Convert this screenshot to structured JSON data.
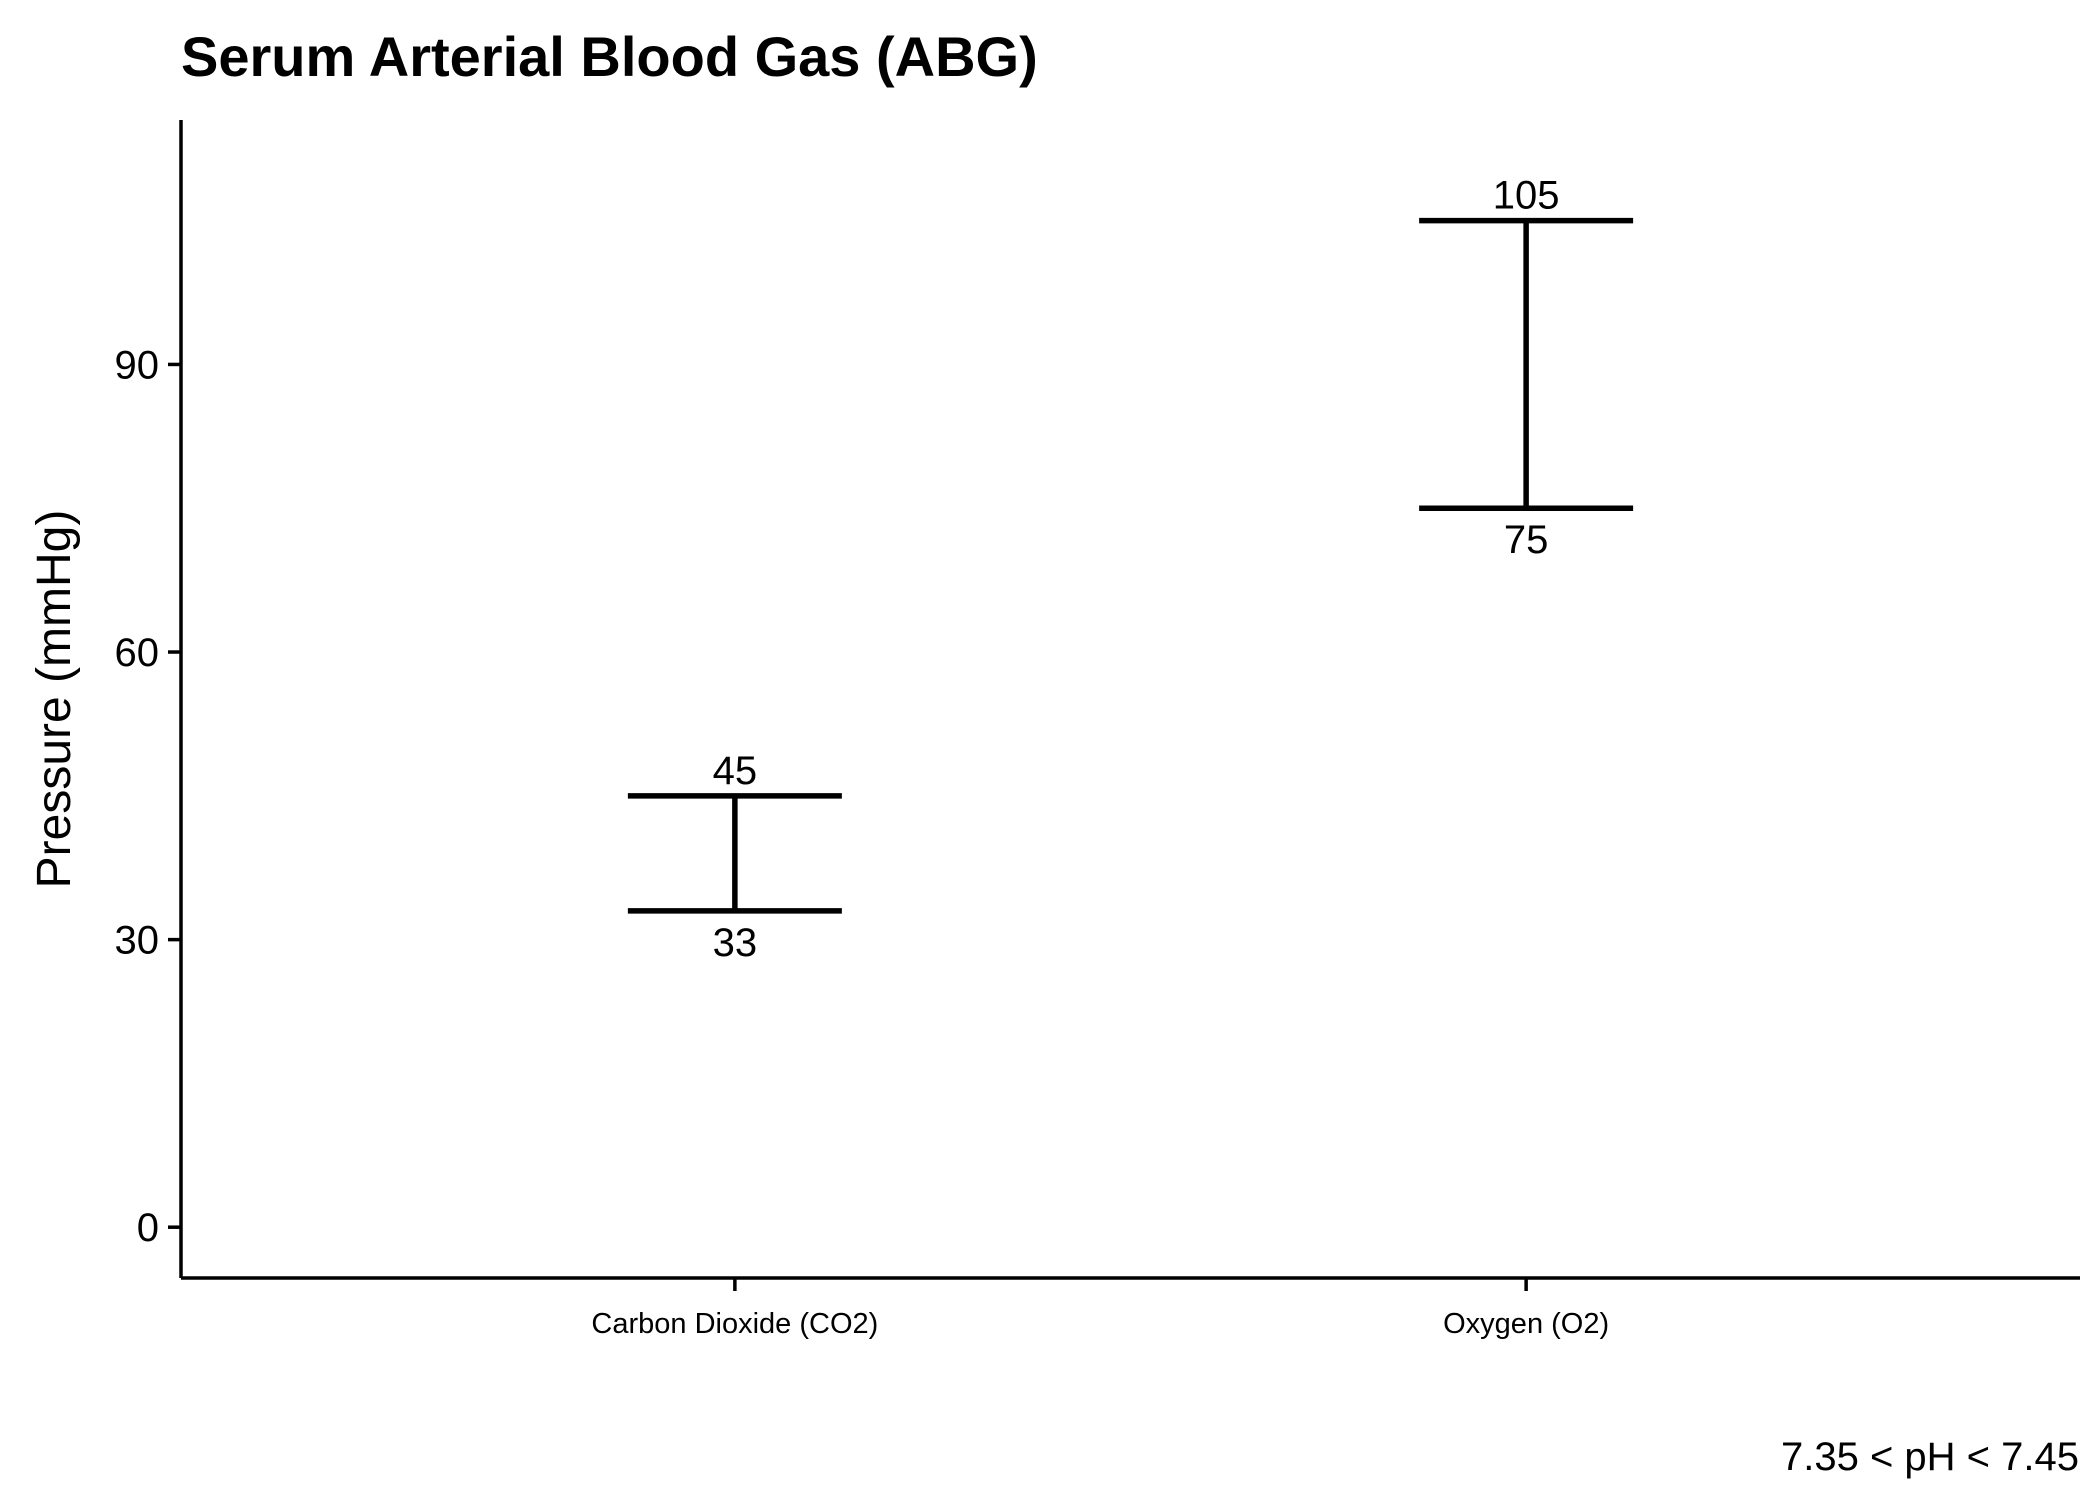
{
  "chart_data": {
    "type": "errorbar",
    "title": "Serum Arterial Blood Gas (ABG)",
    "xlabel": "",
    "ylabel": "Pressure (mmHg)",
    "caption": "7.35 < pH < 7.45",
    "categories": [
      "Carbon Dioxide (CO2)",
      "Oxygen (O2)"
    ],
    "ranges": [
      {
        "category": "Carbon Dioxide (CO2)",
        "low": 33,
        "high": 45
      },
      {
        "category": "Oxygen (O2)",
        "low": 75,
        "high": 105
      }
    ],
    "yticks": [
      0,
      30,
      60,
      90
    ],
    "ylim": [
      -5.3,
      115.5
    ],
    "grid": false,
    "legend": "none"
  }
}
